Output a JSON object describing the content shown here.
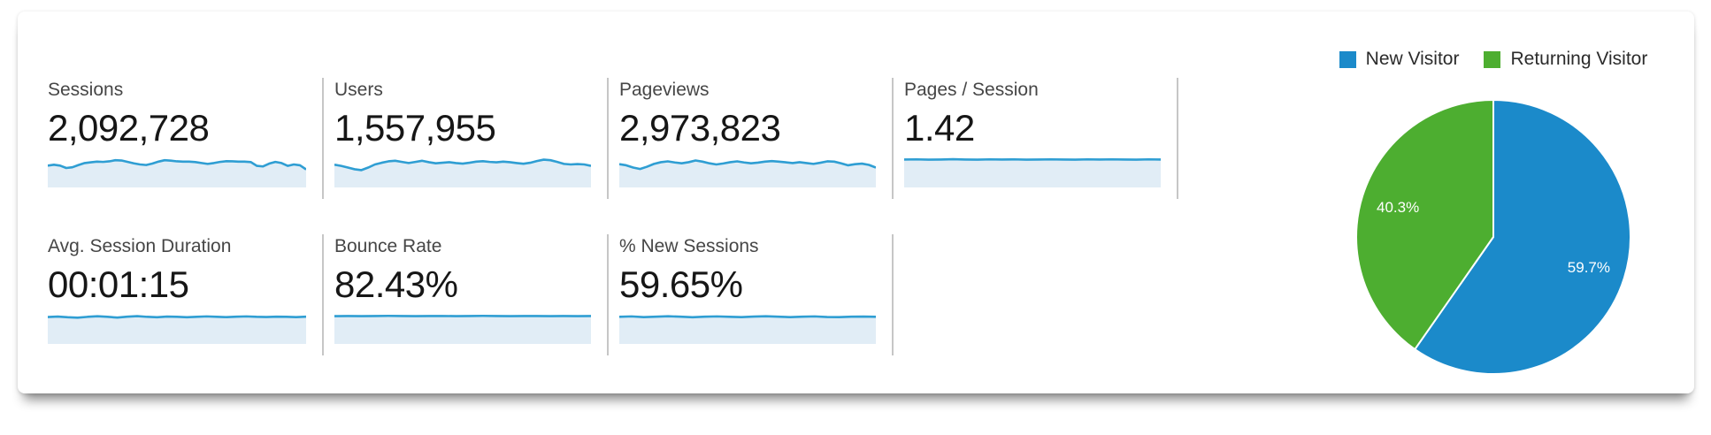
{
  "metrics": {
    "row1": [
      {
        "label": "Sessions",
        "value": "2,092,728",
        "spark": [
          0.42,
          0.48,
          0.42,
          0.25,
          0.3,
          0.46,
          0.6,
          0.65,
          0.7,
          0.68,
          0.72,
          0.8,
          0.78,
          0.68,
          0.58,
          0.5,
          0.46,
          0.56,
          0.7,
          0.8,
          0.77,
          0.72,
          0.7,
          0.7,
          0.67,
          0.6,
          0.54,
          0.6,
          0.68,
          0.73,
          0.72,
          0.7,
          0.7,
          0.67,
          0.4,
          0.36,
          0.56,
          0.68,
          0.6,
          0.4,
          0.5,
          0.44,
          0.15
        ]
      },
      {
        "label": "Users",
        "value": "1,557,955",
        "spark": [
          0.48,
          0.4,
          0.28,
          0.16,
          0.1,
          0.28,
          0.5,
          0.62,
          0.72,
          0.76,
          0.68,
          0.6,
          0.68,
          0.76,
          0.66,
          0.58,
          0.62,
          0.66,
          0.6,
          0.56,
          0.62,
          0.7,
          0.73,
          0.68,
          0.65,
          0.7,
          0.66,
          0.6,
          0.55,
          0.62,
          0.74,
          0.84,
          0.8,
          0.68,
          0.54,
          0.5,
          0.53,
          0.5,
          0.4
        ]
      },
      {
        "label": "Pageviews",
        "value": "2,973,823",
        "spark": [
          0.52,
          0.44,
          0.28,
          0.18,
          0.34,
          0.54,
          0.66,
          0.72,
          0.64,
          0.58,
          0.66,
          0.78,
          0.7,
          0.58,
          0.5,
          0.57,
          0.66,
          0.72,
          0.64,
          0.58,
          0.63,
          0.7,
          0.74,
          0.7,
          0.65,
          0.6,
          0.66,
          0.6,
          0.54,
          0.62,
          0.72,
          0.7,
          0.58,
          0.44,
          0.52,
          0.56,
          0.47,
          0.28
        ]
      },
      {
        "label": "Pages / Session",
        "value": "1.42",
        "spark": [
          0.85,
          0.86,
          0.84,
          0.85,
          0.87,
          0.85,
          0.84,
          0.86,
          0.85,
          0.86,
          0.84,
          0.85,
          0.86,
          0.85,
          0.84,
          0.86,
          0.85,
          0.86,
          0.85,
          0.84,
          0.86,
          0.85
        ]
      }
    ],
    "row2": [
      {
        "label": "Avg. Session Duration",
        "value": "00:01:15",
        "spark": [
          0.78,
          0.81,
          0.76,
          0.73,
          0.79,
          0.83,
          0.79,
          0.74,
          0.8,
          0.84,
          0.79,
          0.76,
          0.81,
          0.79,
          0.76,
          0.79,
          0.82,
          0.79,
          0.77,
          0.8,
          0.82,
          0.79,
          0.78,
          0.8,
          0.79,
          0.77,
          0.8
        ]
      },
      {
        "label": "Bounce Rate",
        "value": "82.43%",
        "spark": [
          0.84,
          0.85,
          0.84,
          0.85,
          0.86,
          0.85,
          0.84,
          0.85,
          0.85,
          0.84,
          0.85,
          0.86,
          0.85,
          0.84,
          0.85,
          0.85,
          0.84,
          0.85,
          0.84,
          0.85
        ]
      },
      {
        "label": "% New Sessions",
        "value": "59.65%",
        "spark": [
          0.79,
          0.82,
          0.77,
          0.8,
          0.83,
          0.8,
          0.76,
          0.8,
          0.82,
          0.79,
          0.77,
          0.81,
          0.83,
          0.8,
          0.77,
          0.8,
          0.82,
          0.78,
          0.77,
          0.8,
          0.81,
          0.79
        ]
      }
    ]
  },
  "sparkline_style": {
    "line_color": "#2f9ed3",
    "fill_color": "#e1edf6"
  },
  "chart_data": {
    "type": "pie",
    "labels": [
      "New Visitor",
      "Returning Visitor"
    ],
    "values": [
      59.7,
      40.3
    ],
    "value_labels": [
      "59.7%",
      "40.3%"
    ],
    "colors": [
      "#1b8aca",
      "#4dae30"
    ],
    "legend_position": "top",
    "start_angle_deg": 0,
    "direction": "clockwise"
  }
}
